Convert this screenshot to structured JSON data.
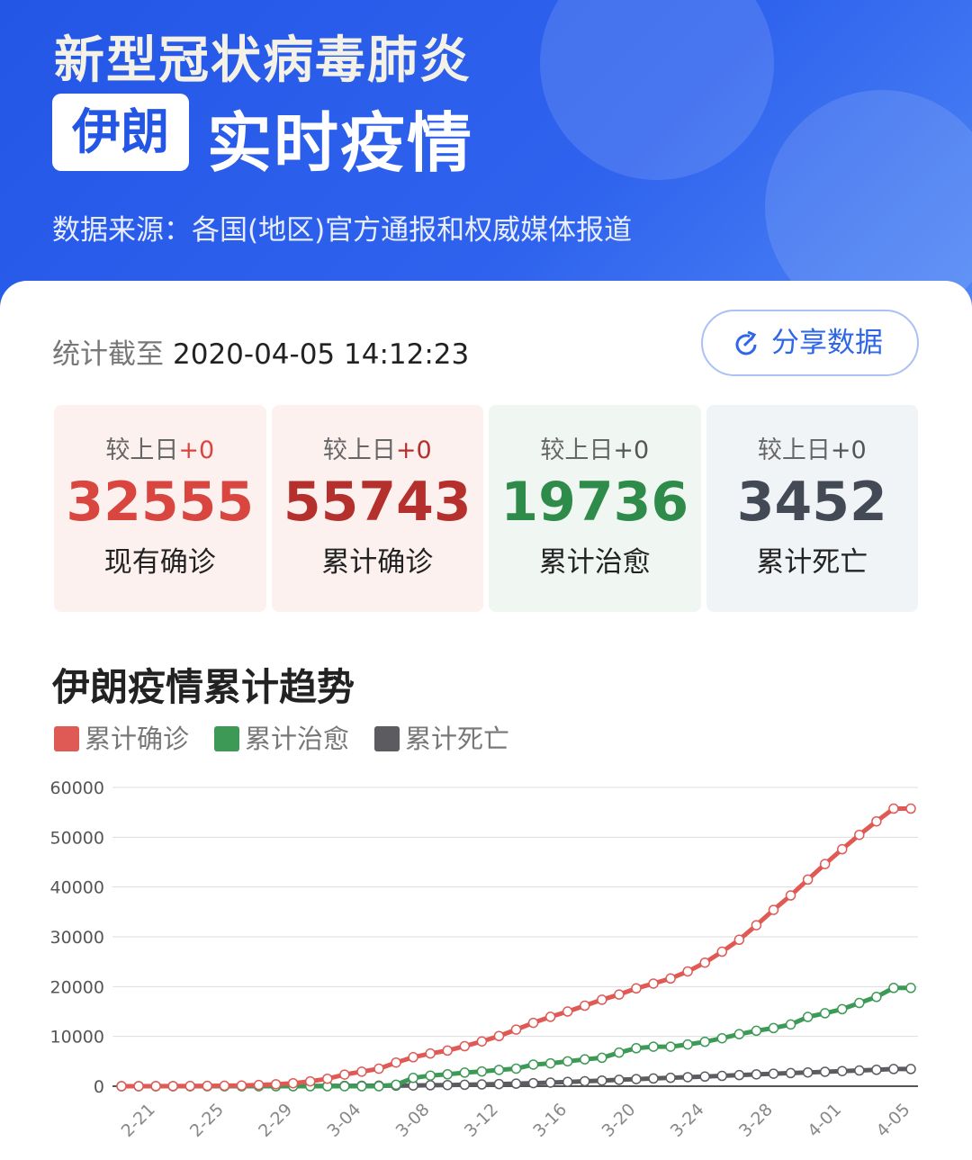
{
  "header": {
    "title_line1": "新型冠状病毒肺炎",
    "country": "伊朗",
    "title_line2": "实时疫情",
    "source": "数据来源：各国(地区)官方通报和权威媒体报道"
  },
  "update": {
    "label": "统计截至",
    "time": "2020-04-05 14:12:23"
  },
  "share": {
    "label": "分享数据",
    "icon": "share-refresh-icon"
  },
  "stats": [
    {
      "delta_label": "较上日",
      "delta": "+0",
      "value": "32555",
      "label": "现有确诊",
      "color": "#d9463f",
      "bg": "#fdf1f0"
    },
    {
      "delta_label": "较上日",
      "delta": "+0",
      "value": "55743",
      "label": "累计确诊",
      "color": "#b5302c",
      "bg": "#fdf1f0"
    },
    {
      "delta_label": "较上日",
      "delta": "+0",
      "value": "19736",
      "label": "累计治愈",
      "color": "#2f8b4a",
      "bg": "#f0f7f3"
    },
    {
      "delta_label": "较上日",
      "delta": "+0",
      "value": "3452",
      "label": "累计死亡",
      "color": "#444a55",
      "bg": "#f1f4f6"
    }
  ],
  "chart_data": {
    "type": "line",
    "title": "伊朗疫情累计趋势",
    "legend_placement": "top-left",
    "grid": true,
    "ylim": [
      0,
      60000
    ],
    "yticks": [
      0,
      10000,
      20000,
      30000,
      40000,
      50000,
      60000
    ],
    "xtick_labels": [
      "2-21",
      "2-25",
      "2-29",
      "3-04",
      "3-08",
      "3-12",
      "3-16",
      "3-20",
      "3-24",
      "3-28",
      "4-01",
      "4-05"
    ],
    "x": [
      "2-19",
      "2-20",
      "2-21",
      "2-22",
      "2-23",
      "2-24",
      "2-25",
      "2-26",
      "2-27",
      "2-28",
      "2-29",
      "3-01",
      "3-02",
      "3-03",
      "3-04",
      "3-05",
      "3-06",
      "3-07",
      "3-08",
      "3-09",
      "3-10",
      "3-11",
      "3-12",
      "3-13",
      "3-14",
      "3-15",
      "3-16",
      "3-17",
      "3-18",
      "3-19",
      "3-20",
      "3-21",
      "3-22",
      "3-23",
      "3-24",
      "3-25",
      "3-26",
      "3-27",
      "3-28",
      "3-29",
      "3-30",
      "3-31",
      "4-01",
      "4-02",
      "4-03",
      "4-04",
      "4-05"
    ],
    "series": [
      {
        "name": "累计确诊",
        "color": "#e05a55",
        "values": [
          2,
          5,
          18,
          28,
          43,
          61,
          95,
          139,
          245,
          388,
          593,
          978,
          1501,
          2336,
          2922,
          3513,
          4747,
          5823,
          6566,
          7161,
          8042,
          9000,
          10075,
          11364,
          12729,
          13938,
          14991,
          16169,
          17361,
          18407,
          19644,
          20610,
          21638,
          23049,
          24811,
          27017,
          29406,
          32332,
          35408,
          38309,
          41495,
          44605,
          47593,
          50468,
          53183,
          55743,
          55743
        ]
      },
      {
        "name": "累计治愈",
        "color": "#3d9a56",
        "values": [
          0,
          0,
          0,
          0,
          0,
          0,
          0,
          0,
          0,
          0,
          0,
          0,
          0,
          0,
          0,
          0,
          300,
          1669,
          2134,
          2394,
          2731,
          2959,
          3276,
          3529,
          4339,
          4590,
          4996,
          5389,
          5710,
          6745,
          7635,
          7931,
          7931,
          8376,
          8913,
          9625,
          10457,
          11133,
          11679,
          12391,
          13911,
          14656,
          15473,
          16711,
          17935,
          19736,
          19736
        ]
      },
      {
        "name": "累计死亡",
        "color": "#5b5b60",
        "values": [
          2,
          4,
          4,
          5,
          8,
          12,
          15,
          19,
          26,
          34,
          43,
          54,
          66,
          77,
          92,
          107,
          124,
          145,
          194,
          237,
          291,
          354,
          429,
          514,
          611,
          724,
          853,
          988,
          1135,
          1284,
          1433,
          1556,
          1685,
          1812,
          1934,
          2077,
          2234,
          2378,
          2517,
          2640,
          2757,
          2898,
          3036,
          3160,
          3294,
          3452,
          3452
        ]
      }
    ]
  }
}
